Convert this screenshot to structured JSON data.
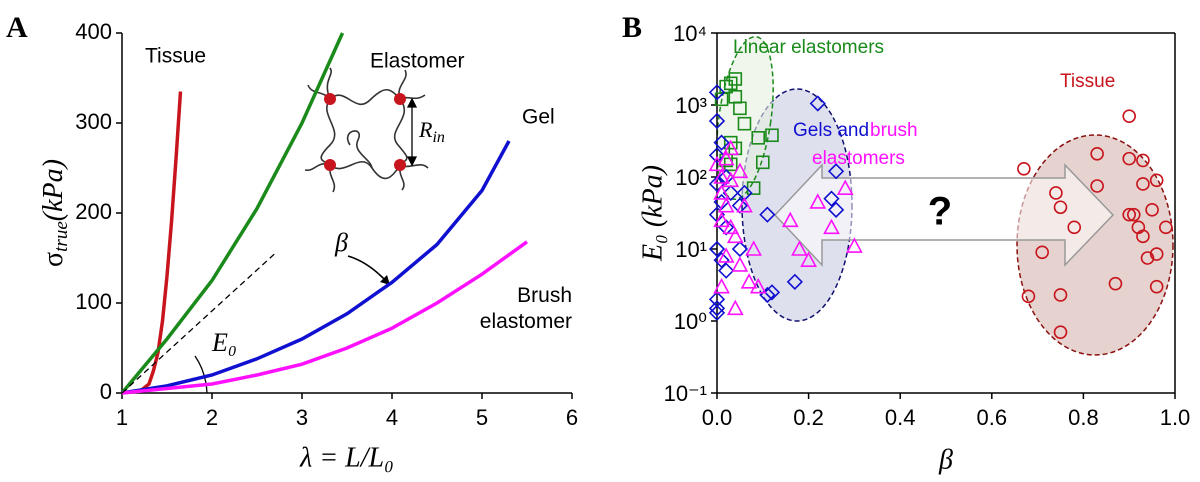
{
  "chart_data": [
    {
      "type": "line",
      "panel_label": "A",
      "xlabel": "λ = L/L₀",
      "ylabel": [
        "σ",
        "true",
        "(kPa)"
      ],
      "xlim": [
        1,
        6
      ],
      "xticks": [
        1,
        2,
        3,
        4,
        5,
        6
      ],
      "ylim": [
        0,
        400
      ],
      "yticks": [
        0,
        100,
        200,
        300,
        400
      ],
      "series": [
        {
          "name": "Tissue",
          "color": "#c8151d",
          "x": [
            1,
            1.2,
            1.3,
            1.35,
            1.4,
            1.45,
            1.5,
            1.55,
            1.6,
            1.65
          ],
          "values": [
            0,
            2,
            10,
            25,
            45,
            80,
            130,
            190,
            260,
            335
          ]
        },
        {
          "name": "Elastomer",
          "color": "#1a8a1a",
          "x": [
            1,
            1.5,
            2,
            2.5,
            3,
            3.45
          ],
          "values": [
            0,
            60,
            125,
            205,
            300,
            400
          ]
        },
        {
          "name": "Gel",
          "color": "#1010d0",
          "x": [
            1,
            1.5,
            2,
            2.5,
            3,
            3.5,
            4,
            4.5,
            5,
            5.3
          ],
          "values": [
            0,
            8,
            20,
            38,
            60,
            88,
            123,
            165,
            225,
            280
          ]
        },
        {
          "name": "Brush elastomer",
          "color": "#ff10ff",
          "x": [
            1,
            2,
            2.5,
            3,
            3.5,
            4,
            4.5,
            5,
            5.5
          ],
          "values": [
            0,
            10,
            20,
            32,
            50,
            72,
            100,
            132,
            168
          ]
        },
        {
          "color": "#000000",
          "dash": true,
          "x": [
            1,
            2.7
          ],
          "values": [
            0,
            155
          ]
        }
      ],
      "annotations": [
        "β",
        "E₀"
      ],
      "inset_label": [
        "R",
        "in"
      ]
    },
    {
      "type": "scatter",
      "panel_label": "B",
      "xlabel": "β",
      "ylabel": "E₀ (kPa)",
      "log_y": true,
      "xlim": [
        0,
        1
      ],
      "xticks": [
        {
          "value": 0,
          "label": "0.0"
        },
        0.2,
        0.4,
        0.6,
        0.8,
        {
          "value": 1,
          "label": "1.0"
        }
      ],
      "ylim": [
        0.1,
        10000
      ],
      "yticks": [
        {
          "value": 0.1,
          "label": "10⁻¹"
        },
        {
          "value": 1,
          "label": "10⁰"
        },
        {
          "value": 10,
          "label": "10¹"
        },
        {
          "value": 100,
          "label": "10²"
        },
        {
          "value": 1000,
          "label": "10³"
        },
        {
          "value": 10000,
          "label": "10⁴"
        }
      ],
      "series": [
        {
          "name": "Linear elastomers",
          "color": "#1a8a1a",
          "marker": "square",
          "x": [
            0.01,
            0.03,
            0.04,
            0.02,
            0.05,
            0.06,
            0.04,
            0.03,
            0.09,
            0.1,
            0.12,
            0.08,
            0.02,
            0.04,
            0.03
          ],
          "values": [
            1200,
            2000,
            2300,
            1800,
            900,
            550,
            1300,
            300,
            350,
            160,
            380,
            70,
            170,
            250,
            150
          ]
        },
        {
          "color": "#1010d0",
          "marker": "diamond",
          "x": [
            0,
            0,
            0.01,
            0,
            0.02,
            0,
            0.01,
            0,
            0.02,
            0,
            0.01,
            0.02,
            0,
            0,
            0.06,
            0.11,
            0.12,
            0.11,
            0.17,
            0.22,
            0.26,
            0.26,
            0.25,
            0.05,
            0.03,
            0,
            0.05
          ],
          "values": [
            1500,
            600,
            300,
            200,
            100,
            80,
            45,
            30,
            20,
            10,
            7,
            5,
            1.5,
            1.3,
            60,
            30,
            2.5,
            2.3,
            3.5,
            1050,
            120,
            35,
            50,
            10,
            60,
            2,
            40
          ]
        },
        {
          "color": "#ff10ff",
          "marker": "triangle",
          "x": [
            0,
            0.01,
            0.02,
            0.03,
            0.01,
            0.02,
            0.03,
            0.01,
            0.04,
            0.02,
            0.05,
            0.01,
            0.04,
            0.08,
            0.07,
            0.09,
            0.16,
            0.18,
            0.22,
            0.25,
            0.28,
            0.3,
            0.2,
            0.06,
            0.03,
            0.05
          ],
          "values": [
            150,
            100,
            180,
            90,
            60,
            40,
            20,
            25,
            15,
            8,
            6,
            3,
            1.5,
            10,
            3.5,
            3,
            25,
            10,
            45,
            20,
            70,
            11,
            7,
            40,
            250,
            120
          ]
        },
        {
          "name": "Tissue",
          "color": "#c8151d",
          "marker": "circle",
          "x": [
            0.67,
            0.68,
            0.71,
            0.74,
            0.75,
            0.75,
            0.75,
            0.78,
            0.83,
            0.83,
            0.87,
            0.9,
            0.9,
            0.9,
            0.91,
            0.92,
            0.93,
            0.93,
            0.94,
            0.95,
            0.96,
            0.96,
            0.96,
            0.98,
            0.93
          ],
          "values": [
            130,
            2.2,
            9,
            60,
            38,
            2.3,
            0.7,
            20,
            210,
            75,
            3.3,
            700,
            180,
            30,
            30,
            20,
            170,
            80,
            7.5,
            35,
            90,
            8.5,
            3,
            20,
            15
          ]
        }
      ],
      "annotations": [
        {
          "text": "Linear elastomers",
          "color": "#1a8a1a"
        },
        {
          "text": "Gels and",
          "color": "#1010d0"
        },
        {
          "text": "brush",
          "color": "#ff10ff"
        },
        {
          "text": "elastomers",
          "color": "#ff10ff"
        },
        {
          "text": "?",
          "color": "#000000"
        }
      ]
    }
  ]
}
